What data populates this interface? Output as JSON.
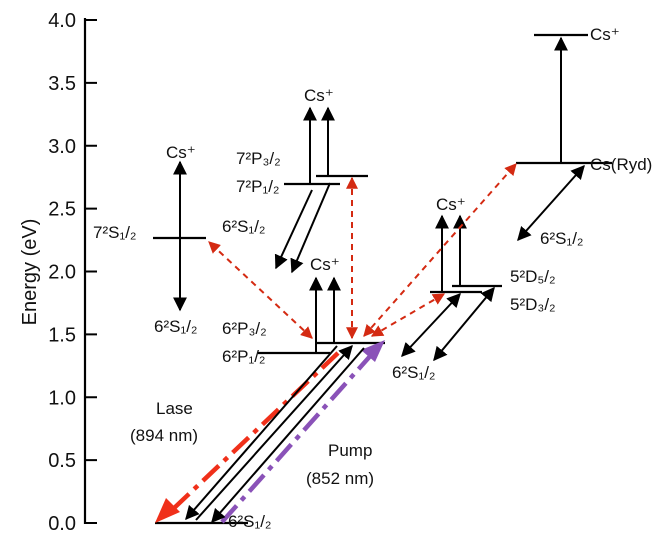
{
  "axis": {
    "ylabel": "Energy (eV)",
    "ticks": [
      "0.0",
      "0.5",
      "1.0",
      "1.5",
      "2.0",
      "2.5",
      "3.0",
      "3.5",
      "4.0"
    ],
    "ylim": [
      0,
      4.0
    ]
  },
  "labels": {
    "ground": "6²S₁/₂",
    "p32": "6²P₃/₂",
    "p12": "6²P₁/₂",
    "s7": "7²S₁/₂",
    "s7_down": "6²S₁/₂",
    "cs_plus_s7": "Cs⁺",
    "p7_32": "7²P₃/₂",
    "p7_12": "7²P₁/₂",
    "p7_down": "6²S₁/₂",
    "cs_plus_p7": "Cs⁺",
    "cs_plus_p6": "Cs⁺",
    "d52": "5²D₅/₂",
    "d32": "5²D₃/₂",
    "d_down": "6²S₁/₂",
    "cs_plus_d": "Cs⁺",
    "ryd": "Cs(Ryd)",
    "ryd_down": "6²S₁/₂",
    "cs_plus_top": "Cs⁺",
    "lase_1": "Lase",
    "lase_2": "(894 nm)",
    "pump_1": "Pump",
    "pump_2": "(852 nm)"
  },
  "colors": {
    "lase": "#f0301a",
    "pump": "#8a52b8",
    "dashed": "#d42a12",
    "black": "#000000"
  }
}
